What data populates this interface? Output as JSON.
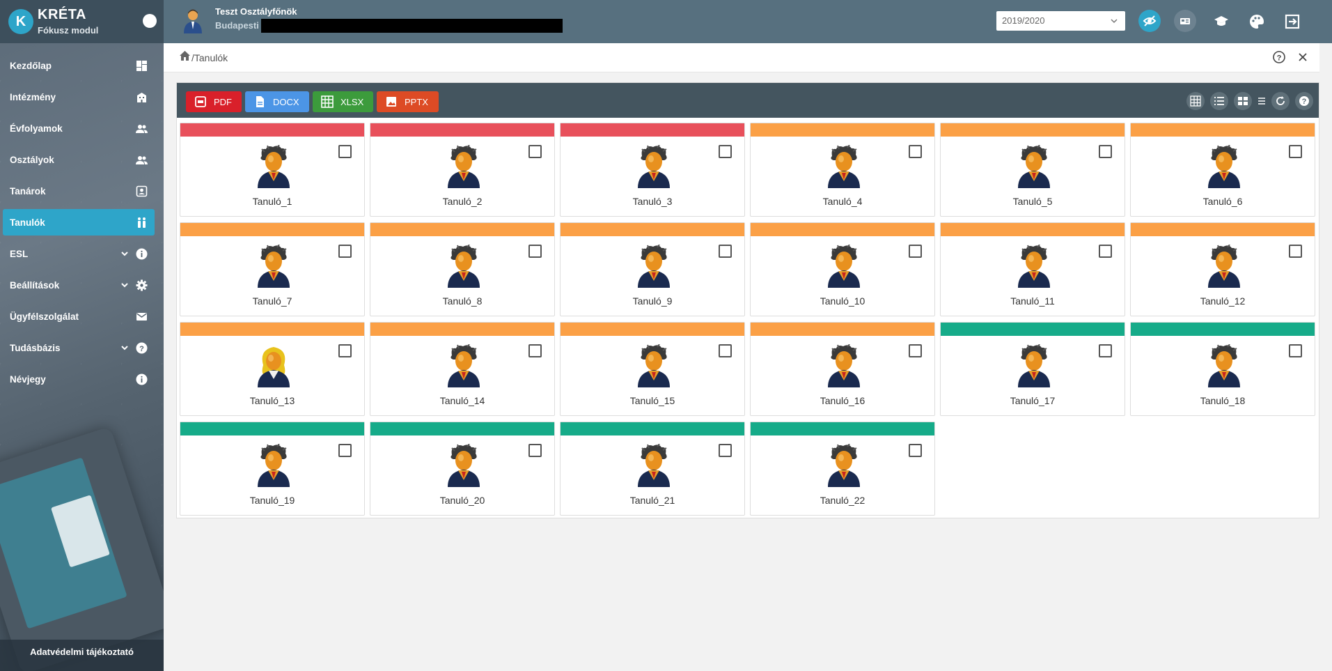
{
  "app": {
    "logo_letter": "K",
    "title": "KRÉTA",
    "subtitle": "Fókusz modul"
  },
  "colors": {
    "accent": "#2ea5c9",
    "red": "#e8505b",
    "orange": "#fba046",
    "green": "#16ab89",
    "pdf": "#d9202a",
    "docx": "#4c95e6",
    "xlsx": "#3c9b3c",
    "pptx": "#dd4b25"
  },
  "sidebar": {
    "items": [
      {
        "label": "Kezdőlap",
        "icon": "dashboard-icon",
        "chevron": false,
        "active": false
      },
      {
        "label": "Intézmény",
        "icon": "building-icon",
        "chevron": false,
        "active": false
      },
      {
        "label": "Évfolyamok",
        "icon": "people-icon",
        "chevron": false,
        "active": false
      },
      {
        "label": "Osztályok",
        "icon": "people-icon",
        "chevron": false,
        "active": false
      },
      {
        "label": "Tanárok",
        "icon": "contact-card-icon",
        "chevron": false,
        "active": false
      },
      {
        "label": "Tanulók",
        "icon": "students-icon",
        "chevron": false,
        "active": true
      },
      {
        "label": "ESL",
        "icon": "info-icon",
        "chevron": true,
        "active": false
      },
      {
        "label": "Beállítások",
        "icon": "gear-icon",
        "chevron": true,
        "active": false
      },
      {
        "label": "Ügyfélszolgálat",
        "icon": "mail-icon",
        "chevron": false,
        "active": false
      },
      {
        "label": "Tudásbázis",
        "icon": "help-icon",
        "chevron": true,
        "active": false
      },
      {
        "label": "Névjegy",
        "icon": "info-icon",
        "chevron": false,
        "active": false
      }
    ],
    "footer": "Adatvédelmi tájékoztató"
  },
  "topbar": {
    "user_name": "Teszt Osztályfőnök",
    "school": "Budapesti",
    "year": "2019/2020",
    "icons": [
      "eye-off-icon",
      "id-card-icon",
      "graduation-cap-icon",
      "palette-icon",
      "logout-icon"
    ]
  },
  "breadcrumb": {
    "separator": "/",
    "current": "Tanulók"
  },
  "toolbar": {
    "export_buttons": [
      {
        "label": "PDF",
        "color": "#d9202a",
        "icon": "pdf-icon"
      },
      {
        "label": "DOCX",
        "color": "#4c95e6",
        "icon": "doc-icon"
      },
      {
        "label": "XLSX",
        "color": "#3c9b3c",
        "icon": "sheet-icon"
      },
      {
        "label": "PPTX",
        "color": "#dd4b25",
        "icon": "image-icon"
      }
    ],
    "view_icons": [
      "grid-view-icon",
      "list-view-icon",
      "tile-view-icon",
      "menu-icon",
      "refresh-icon",
      "help-icon"
    ]
  },
  "students": [
    {
      "name": "Tanuló_1",
      "status": "red",
      "gender": "male"
    },
    {
      "name": "Tanuló_2",
      "status": "red",
      "gender": "male"
    },
    {
      "name": "Tanuló_3",
      "status": "red",
      "gender": "male"
    },
    {
      "name": "Tanuló_4",
      "status": "orange",
      "gender": "male"
    },
    {
      "name": "Tanuló_5",
      "status": "orange",
      "gender": "male"
    },
    {
      "name": "Tanuló_6",
      "status": "orange",
      "gender": "male"
    },
    {
      "name": "Tanuló_7",
      "status": "orange",
      "gender": "male"
    },
    {
      "name": "Tanuló_8",
      "status": "orange",
      "gender": "male"
    },
    {
      "name": "Tanuló_9",
      "status": "orange",
      "gender": "male"
    },
    {
      "name": "Tanuló_10",
      "status": "orange",
      "gender": "male"
    },
    {
      "name": "Tanuló_11",
      "status": "orange",
      "gender": "male"
    },
    {
      "name": "Tanuló_12",
      "status": "orange",
      "gender": "male"
    },
    {
      "name": "Tanuló_13",
      "status": "orange",
      "gender": "female"
    },
    {
      "name": "Tanuló_14",
      "status": "orange",
      "gender": "male"
    },
    {
      "name": "Tanuló_15",
      "status": "orange",
      "gender": "male"
    },
    {
      "name": "Tanuló_16",
      "status": "orange",
      "gender": "male"
    },
    {
      "name": "Tanuló_17",
      "status": "green",
      "gender": "male"
    },
    {
      "name": "Tanuló_18",
      "status": "green",
      "gender": "male"
    },
    {
      "name": "Tanuló_19",
      "status": "green",
      "gender": "male"
    },
    {
      "name": "Tanuló_20",
      "status": "green",
      "gender": "male"
    },
    {
      "name": "Tanuló_21",
      "status": "green",
      "gender": "male"
    },
    {
      "name": "Tanuló_22",
      "status": "green",
      "gender": "male"
    }
  ]
}
